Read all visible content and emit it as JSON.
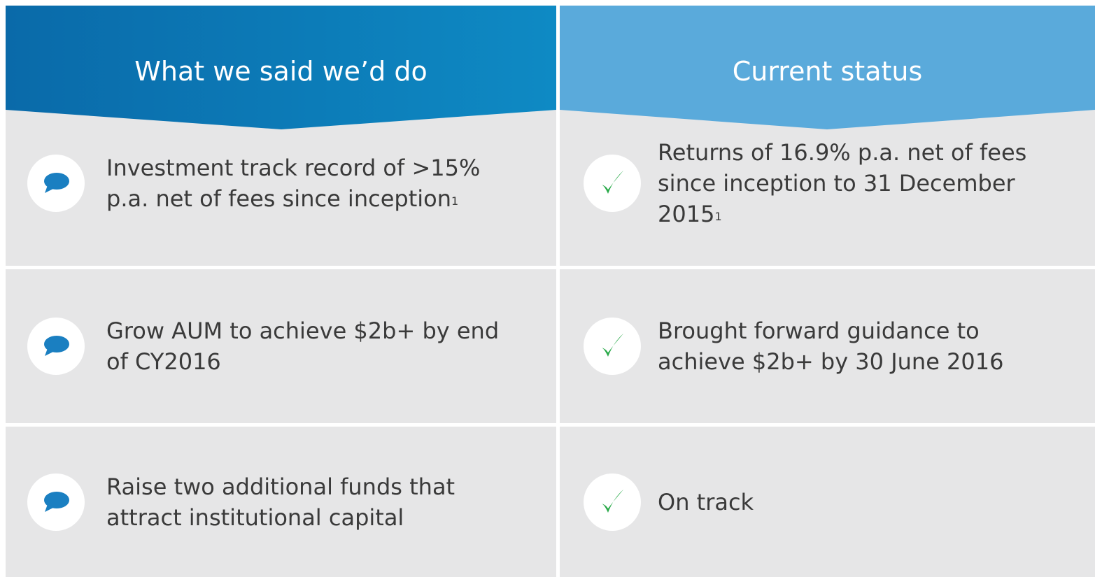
{
  "header": {
    "left": "What we said we’d do",
    "right": "Current status"
  },
  "rows": [
    {
      "said": "Investment track record of >15% p.a. net of fees since inception",
      "said_note": "1",
      "status": "Returns of 16.9% p.a. net of fees since inception to 31 December 2015",
      "status_note": "1"
    },
    {
      "said": "Grow AUM to achieve $2b+ by end of CY2016",
      "status": "Brought forward guidance to achieve $2b+ by 30 June 2016"
    },
    {
      "said": "Raise two additional funds that attract institutional capital",
      "status": "On track"
    }
  ]
}
